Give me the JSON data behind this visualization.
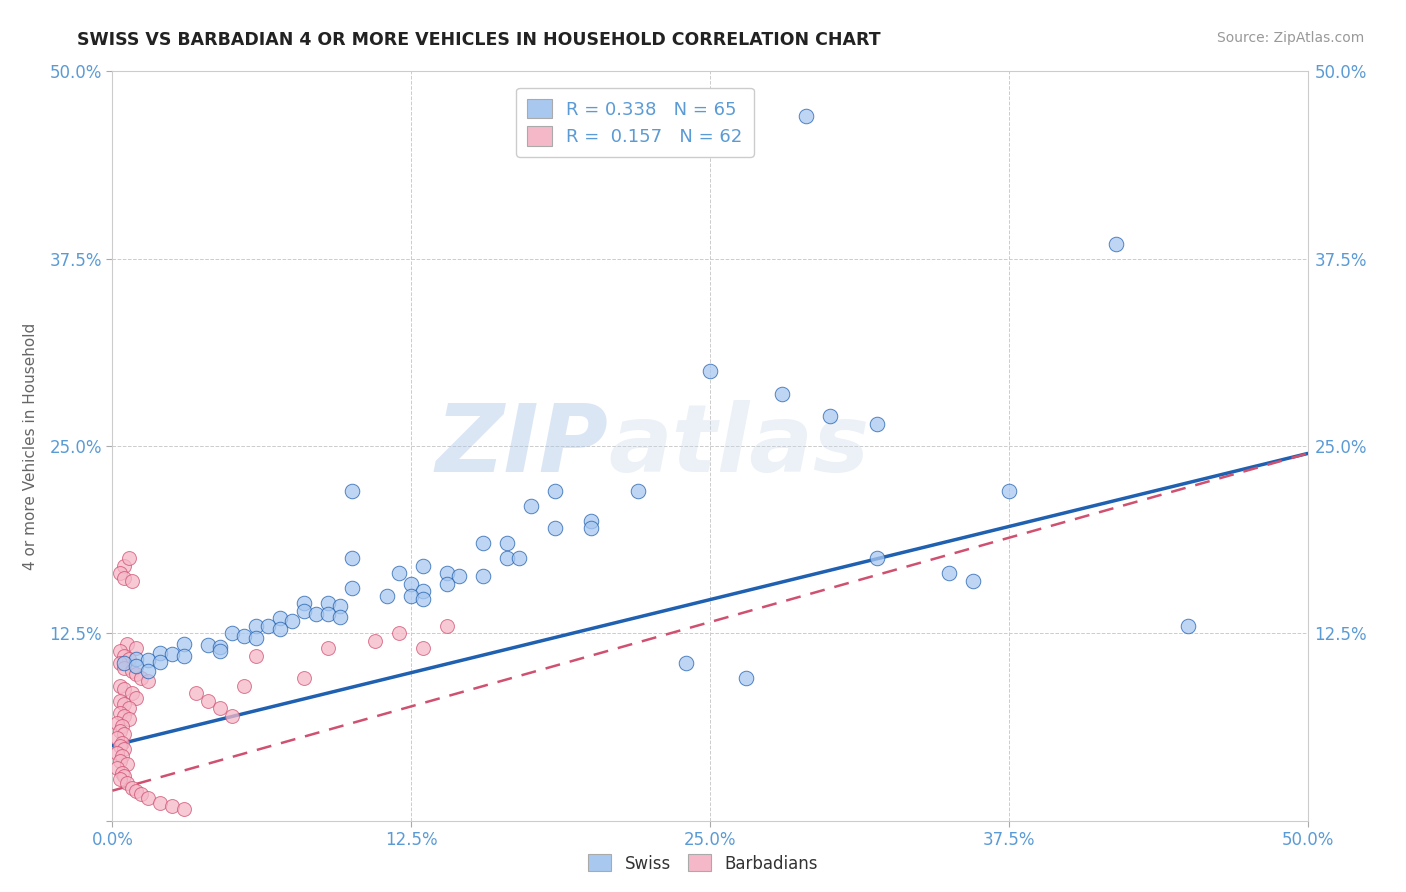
{
  "title": "SWISS VS BARBADIAN 4 OR MORE VEHICLES IN HOUSEHOLD CORRELATION CHART",
  "source": "Source: ZipAtlas.com",
  "ylabel": "4 or more Vehicles in Household",
  "swiss_R": "0.338",
  "swiss_N": "65",
  "barb_R": "0.157",
  "barb_N": "62",
  "swiss_color": "#a8c8f0",
  "barb_color": "#f5b8c8",
  "swiss_line_color": "#2060b0",
  "barb_line_color": "#d05070",
  "background_color": "#ffffff",
  "watermark_zip": "ZIP",
  "watermark_atlas": "atlas",
  "xlim": [
    0.0,
    0.5
  ],
  "ylim": [
    0.0,
    0.5
  ],
  "xtick_vals": [
    0.0,
    0.125,
    0.25,
    0.375,
    0.5
  ],
  "ytick_vals": [
    0.0,
    0.125,
    0.25,
    0.375,
    0.5
  ],
  "swiss_trend": [
    0.0,
    0.05,
    0.5,
    0.245
  ],
  "barb_trend": [
    0.0,
    0.02,
    0.5,
    0.245
  ],
  "swiss_points": [
    [
      0.29,
      0.47
    ],
    [
      0.42,
      0.385
    ],
    [
      0.375,
      0.22
    ],
    [
      0.25,
      0.3
    ],
    [
      0.28,
      0.285
    ],
    [
      0.3,
      0.27
    ],
    [
      0.32,
      0.265
    ],
    [
      0.22,
      0.22
    ],
    [
      0.2,
      0.2
    ],
    [
      0.185,
      0.22
    ],
    [
      0.175,
      0.21
    ],
    [
      0.185,
      0.195
    ],
    [
      0.2,
      0.195
    ],
    [
      0.1,
      0.22
    ],
    [
      0.155,
      0.185
    ],
    [
      0.165,
      0.185
    ],
    [
      0.165,
      0.175
    ],
    [
      0.17,
      0.175
    ],
    [
      0.1,
      0.175
    ],
    [
      0.13,
      0.17
    ],
    [
      0.12,
      0.165
    ],
    [
      0.14,
      0.165
    ],
    [
      0.145,
      0.163
    ],
    [
      0.155,
      0.163
    ],
    [
      0.125,
      0.158
    ],
    [
      0.14,
      0.158
    ],
    [
      0.1,
      0.155
    ],
    [
      0.13,
      0.153
    ],
    [
      0.115,
      0.15
    ],
    [
      0.125,
      0.15
    ],
    [
      0.13,
      0.148
    ],
    [
      0.08,
      0.145
    ],
    [
      0.09,
      0.145
    ],
    [
      0.095,
      0.143
    ],
    [
      0.08,
      0.14
    ],
    [
      0.085,
      0.138
    ],
    [
      0.09,
      0.138
    ],
    [
      0.095,
      0.136
    ],
    [
      0.07,
      0.135
    ],
    [
      0.075,
      0.133
    ],
    [
      0.06,
      0.13
    ],
    [
      0.065,
      0.13
    ],
    [
      0.07,
      0.128
    ],
    [
      0.05,
      0.125
    ],
    [
      0.055,
      0.123
    ],
    [
      0.06,
      0.122
    ],
    [
      0.03,
      0.118
    ],
    [
      0.04,
      0.117
    ],
    [
      0.045,
      0.116
    ],
    [
      0.045,
      0.113
    ],
    [
      0.02,
      0.112
    ],
    [
      0.025,
      0.111
    ],
    [
      0.03,
      0.11
    ],
    [
      0.01,
      0.108
    ],
    [
      0.015,
      0.107
    ],
    [
      0.02,
      0.106
    ],
    [
      0.005,
      0.105
    ],
    [
      0.01,
      0.103
    ],
    [
      0.015,
      0.1
    ],
    [
      0.32,
      0.175
    ],
    [
      0.35,
      0.165
    ],
    [
      0.36,
      0.16
    ],
    [
      0.45,
      0.13
    ],
    [
      0.24,
      0.105
    ],
    [
      0.265,
      0.095
    ]
  ],
  "barb_points": [
    [
      0.005,
      0.17
    ],
    [
      0.007,
      0.175
    ],
    [
      0.003,
      0.165
    ],
    [
      0.005,
      0.162
    ],
    [
      0.008,
      0.16
    ],
    [
      0.006,
      0.118
    ],
    [
      0.01,
      0.115
    ],
    [
      0.003,
      0.113
    ],
    [
      0.005,
      0.11
    ],
    [
      0.007,
      0.108
    ],
    [
      0.003,
      0.105
    ],
    [
      0.005,
      0.102
    ],
    [
      0.008,
      0.1
    ],
    [
      0.01,
      0.098
    ],
    [
      0.012,
      0.095
    ],
    [
      0.015,
      0.093
    ],
    [
      0.003,
      0.09
    ],
    [
      0.005,
      0.088
    ],
    [
      0.008,
      0.085
    ],
    [
      0.01,
      0.082
    ],
    [
      0.003,
      0.08
    ],
    [
      0.005,
      0.078
    ],
    [
      0.007,
      0.075
    ],
    [
      0.003,
      0.072
    ],
    [
      0.005,
      0.07
    ],
    [
      0.007,
      0.068
    ],
    [
      0.002,
      0.065
    ],
    [
      0.004,
      0.063
    ],
    [
      0.003,
      0.06
    ],
    [
      0.005,
      0.058
    ],
    [
      0.002,
      0.055
    ],
    [
      0.004,
      0.052
    ],
    [
      0.003,
      0.05
    ],
    [
      0.005,
      0.048
    ],
    [
      0.002,
      0.045
    ],
    [
      0.004,
      0.043
    ],
    [
      0.003,
      0.04
    ],
    [
      0.006,
      0.038
    ],
    [
      0.002,
      0.035
    ],
    [
      0.004,
      0.032
    ],
    [
      0.005,
      0.03
    ],
    [
      0.003,
      0.028
    ],
    [
      0.006,
      0.025
    ],
    [
      0.008,
      0.022
    ],
    [
      0.01,
      0.02
    ],
    [
      0.012,
      0.018
    ],
    [
      0.015,
      0.015
    ],
    [
      0.02,
      0.012
    ],
    [
      0.025,
      0.01
    ],
    [
      0.03,
      0.008
    ],
    [
      0.035,
      0.085
    ],
    [
      0.04,
      0.08
    ],
    [
      0.045,
      0.075
    ],
    [
      0.05,
      0.07
    ],
    [
      0.055,
      0.09
    ],
    [
      0.08,
      0.095
    ],
    [
      0.09,
      0.115
    ],
    [
      0.11,
      0.12
    ],
    [
      0.12,
      0.125
    ],
    [
      0.13,
      0.115
    ],
    [
      0.14,
      0.13
    ],
    [
      0.06,
      0.11
    ]
  ]
}
